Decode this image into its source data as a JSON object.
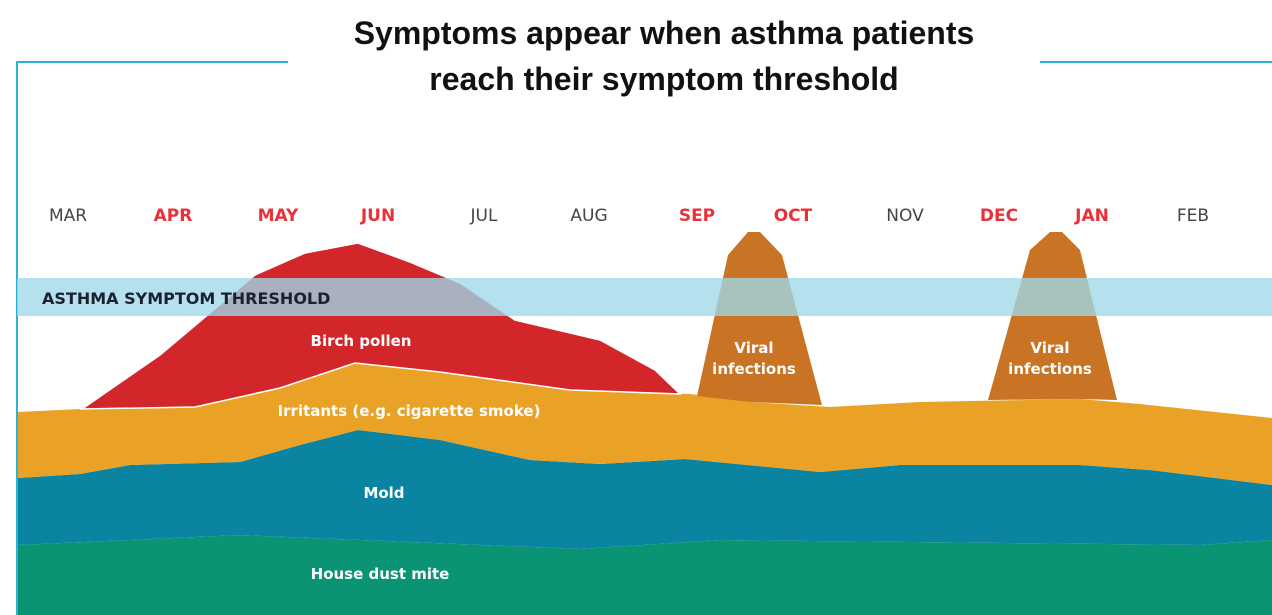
{
  "title": [
    "Symptoms appear when asthma patients",
    "reach their symptom threshold"
  ],
  "months": [
    {
      "label": "MAR",
      "highlight": false
    },
    {
      "label": "APR",
      "highlight": true
    },
    {
      "label": "MAY",
      "highlight": true
    },
    {
      "label": "JUN",
      "highlight": true
    },
    {
      "label": "JUL",
      "highlight": false
    },
    {
      "label": "AUG",
      "highlight": false
    },
    {
      "label": "SEP",
      "highlight": true
    },
    {
      "label": "OCT",
      "highlight": true
    },
    {
      "label": "NOV",
      "highlight": false
    },
    {
      "label": "DEC",
      "highlight": true
    },
    {
      "label": "JAN",
      "highlight": true
    },
    {
      "label": "FEB",
      "highlight": false
    }
  ],
  "threshold_label": "ASTHMA SYMPTOM THRESHOLD",
  "layers": {
    "birch": "Birch pollen",
    "irritants": "Irritants (e.g. cigarette smoke)",
    "mold": "Mold",
    "dust": "House dust mite",
    "viral": [
      "Viral",
      "infections"
    ]
  }
}
